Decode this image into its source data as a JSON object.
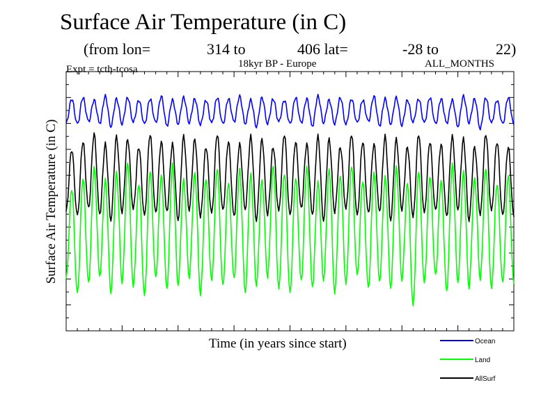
{
  "chart_data": {
    "type": "line",
    "title": "Surface Air Temperature (in C)",
    "subtitle": {
      "from_lon_label": "(from lon=",
      "lon_start": "314 to",
      "lon_end": "406 lat=",
      "lat_start": "-28 to",
      "lat_end": "22)"
    },
    "experiment": "Expt = tcth-tcosa",
    "region": "18kyr BP - Europe",
    "months": "ALL_MONTHS",
    "xlabel": "Time (in years since start)",
    "ylabel": "Surface Air Temperature (in C)",
    "xlim": [
      0,
      40
    ],
    "ylim": [
      0,
      100
    ],
    "grid": false,
    "legend_position": "bottom-right",
    "x": [
      0,
      1,
      2,
      3,
      4,
      5,
      6,
      7,
      8,
      9,
      10,
      11,
      12,
      13,
      14,
      15,
      16,
      17,
      18,
      19,
      20,
      21,
      22,
      23,
      24,
      25,
      26,
      27,
      28,
      29,
      30,
      31,
      32,
      33,
      34,
      35,
      36,
      37,
      38,
      39
    ],
    "series": [
      {
        "name": "Ocean",
        "color": "#0000ff",
        "peak_values": [
          89.5,
          90.0,
          89.0,
          90.5,
          89.5,
          90.0,
          89.0,
          89.5,
          90.5,
          89.0,
          90.0,
          89.5,
          89.0,
          90.0,
          89.5,
          90.5,
          89.0,
          90.0,
          89.5,
          89.0,
          90.0,
          89.5,
          90.5,
          89.0,
          90.0,
          89.5,
          89.0,
          90.5,
          89.5,
          90.0,
          89.0,
          89.5,
          90.0,
          89.5,
          89.0,
          90.5,
          89.5,
          90.0,
          89.0,
          90.0
        ],
        "trough_values": [
          80.0,
          79.5,
          80.5,
          80.0,
          79.0,
          80.0,
          80.5,
          79.5,
          80.0,
          79.0,
          80.0,
          80.5,
          79.5,
          80.0,
          79.5,
          80.5,
          80.0,
          79.0,
          80.0,
          80.5,
          79.5,
          80.0,
          79.0,
          80.5,
          80.0,
          79.5,
          80.0,
          80.5,
          79.0,
          80.0,
          79.5,
          80.5,
          80.0,
          79.5,
          80.0,
          79.0,
          80.5,
          78.0,
          80.0,
          79.5
        ]
      },
      {
        "name": "Land",
        "color": "#00ff00",
        "peak_values": [
          55,
          59,
          63,
          58,
          61,
          65,
          57,
          62,
          60,
          64,
          58,
          61,
          59,
          63,
          57,
          62,
          60,
          58,
          64,
          61,
          59,
          63,
          57,
          62,
          60,
          64,
          58,
          61,
          59,
          63,
          57,
          62,
          60,
          58,
          64,
          61,
          59,
          63,
          57,
          60
        ],
        "trough_values": [
          20,
          14,
          18,
          21,
          15,
          19,
          17,
          13,
          20,
          16,
          18,
          21,
          14,
          19,
          17,
          20,
          15,
          18,
          21,
          16,
          14,
          19,
          17,
          20,
          15,
          18,
          21,
          16,
          19,
          17,
          20,
          10,
          18,
          21,
          15,
          19,
          17,
          20,
          16,
          18
        ]
      },
      {
        "name": "AllSurf",
        "color": "#000000",
        "peak_values": [
          70,
          73,
          76,
          72,
          75,
          74,
          71,
          76,
          73,
          72,
          75,
          74,
          71,
          76,
          73,
          72,
          75,
          74,
          71,
          76,
          73,
          72,
          75,
          74,
          71,
          76,
          73,
          72,
          75,
          74,
          71,
          76,
          73,
          72,
          75,
          74,
          71,
          76,
          73,
          71
        ],
        "trough_values": [
          46,
          44,
          47,
          45,
          43,
          46,
          47,
          44,
          45,
          46,
          43,
          47,
          44,
          45,
          46,
          44,
          47,
          43,
          45,
          46,
          44,
          47,
          45,
          43,
          46,
          47,
          44,
          45,
          46,
          43,
          47,
          44,
          45,
          46,
          44,
          47,
          43,
          45,
          46,
          44
        ]
      }
    ]
  }
}
